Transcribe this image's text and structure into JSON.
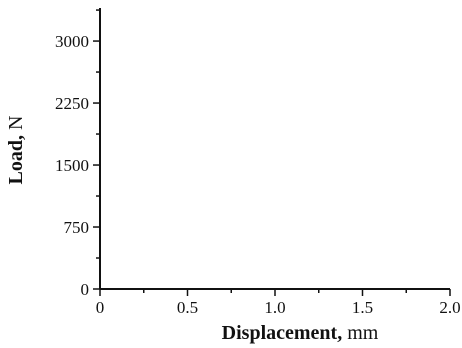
{
  "chart_data": {
    "type": "line",
    "title": "",
    "xlabel": "Displacement, mm",
    "xlabel_main": "Displacement,",
    "xlabel_unit": "mm",
    "ylabel": "Load, N",
    "ylabel_main": "Load,",
    "ylabel_unit": "N",
    "xlim": [
      0,
      2.0
    ],
    "ylim": [
      0,
      3400
    ],
    "x_ticks": [
      0,
      0.5,
      1.0,
      1.5,
      2.0
    ],
    "x_tick_labels": [
      "0",
      "0.5",
      "1.0",
      "1.5",
      "2.0"
    ],
    "y_ticks": [
      0,
      750,
      1500,
      2250,
      3000
    ],
    "y_tick_labels": [
      "0",
      "750",
      "1500",
      "2250",
      "3000"
    ],
    "x_minor_step": 0.25,
    "y_minor_step": 375,
    "grid": false,
    "series": []
  }
}
